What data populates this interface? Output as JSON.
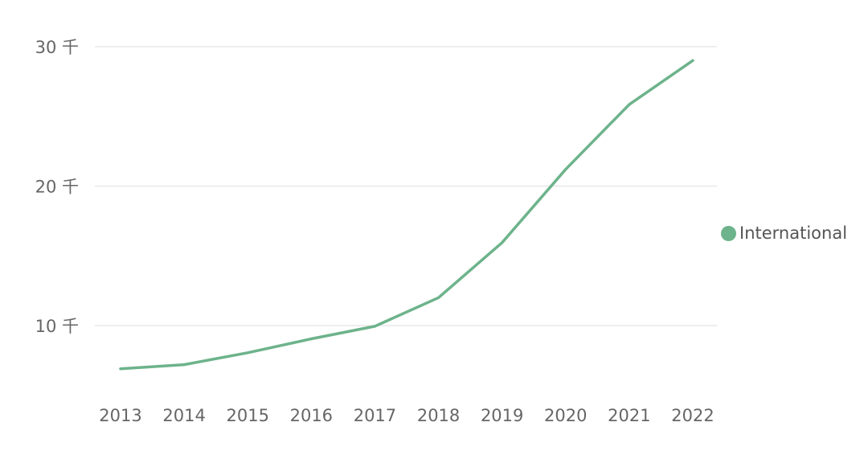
{
  "chart_data": {
    "type": "line",
    "title": "",
    "xlabel": "",
    "ylabel": "",
    "categories": [
      "2013",
      "2014",
      "2015",
      "2016",
      "2017",
      "2018",
      "2019",
      "2020",
      "2021",
      "2022"
    ],
    "series": [
      {
        "name": "International",
        "values": [
          6900,
          7200,
          8050,
          9050,
          9950,
          12000,
          15950,
          21200,
          25850,
          29000
        ]
      }
    ],
    "ylim": [
      5000,
      32000
    ],
    "y_ticks": [
      10000,
      20000,
      30000
    ],
    "y_tick_labels": [
      "10 千",
      "20 千",
      "30 千"
    ],
    "grid": "horizontal",
    "legend_position": "right",
    "colors": {
      "series": "#6db38b",
      "grid": "#e8e8e8",
      "tick_text": "#666666"
    }
  },
  "legend": {
    "label": "International"
  }
}
